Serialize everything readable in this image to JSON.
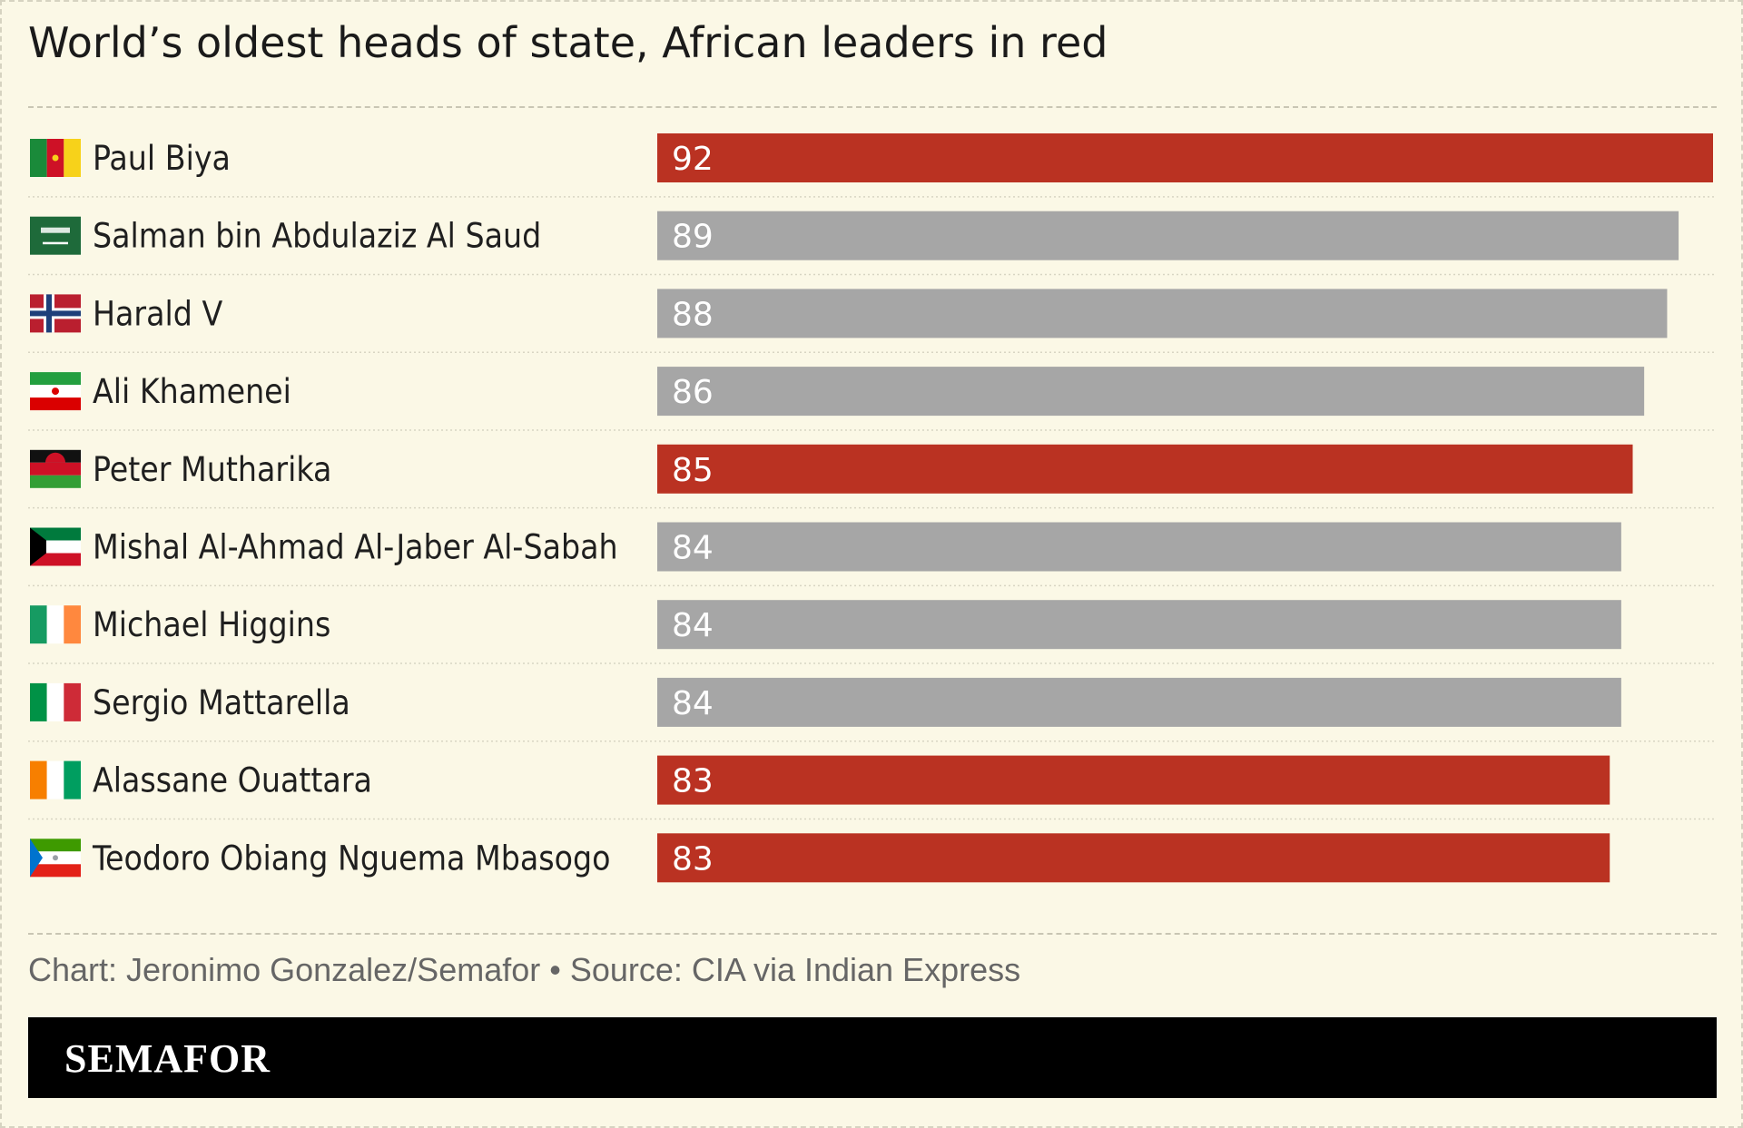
{
  "header": {
    "title": "World’s oldest heads of state, African leaders in red"
  },
  "chart_data": {
    "type": "bar",
    "orientation": "horizontal",
    "title": "World’s oldest heads of state, African leaders in red",
    "xlabel": "",
    "ylabel": "",
    "xlim": [
      0,
      92
    ],
    "grid": false,
    "legend": "none",
    "colors": {
      "african": "#ba3222",
      "other": "#a6a6a6",
      "label": "#ffffff"
    },
    "rows": [
      {
        "name": "Paul Biya",
        "value": 92,
        "african": true,
        "flag": "cameroon-flag-icon"
      },
      {
        "name": "Salman bin Abdulaziz Al Saud",
        "value": 89,
        "african": false,
        "flag": "saudi-arabia-flag-icon"
      },
      {
        "name": "Harald V",
        "value": 88,
        "african": false,
        "flag": "norway-flag-icon"
      },
      {
        "name": "Ali Khamenei",
        "value": 86,
        "african": false,
        "flag": "iran-flag-icon"
      },
      {
        "name": "Peter Mutharika",
        "value": 85,
        "african": true,
        "flag": "malawi-flag-icon"
      },
      {
        "name": "Mishal Al-Ahmad Al-Jaber Al-Sabah",
        "value": 84,
        "african": false,
        "flag": "kuwait-flag-icon"
      },
      {
        "name": "Michael Higgins",
        "value": 84,
        "african": false,
        "flag": "ireland-flag-icon"
      },
      {
        "name": "Sergio Mattarella",
        "value": 84,
        "african": false,
        "flag": "italy-flag-icon"
      },
      {
        "name": "Alassane Ouattara",
        "value": 83,
        "african": true,
        "flag": "cote-divoire-flag-icon"
      },
      {
        "name": "Teodoro Obiang Nguema Mbasogo",
        "value": 83,
        "african": true,
        "flag": "equatorial-guinea-flag-icon"
      }
    ]
  },
  "footer": {
    "source": "Chart: Jeronimo Gonzalez/Semafor • Source: CIA via Indian Express",
    "brand": "SEMAFOR"
  }
}
